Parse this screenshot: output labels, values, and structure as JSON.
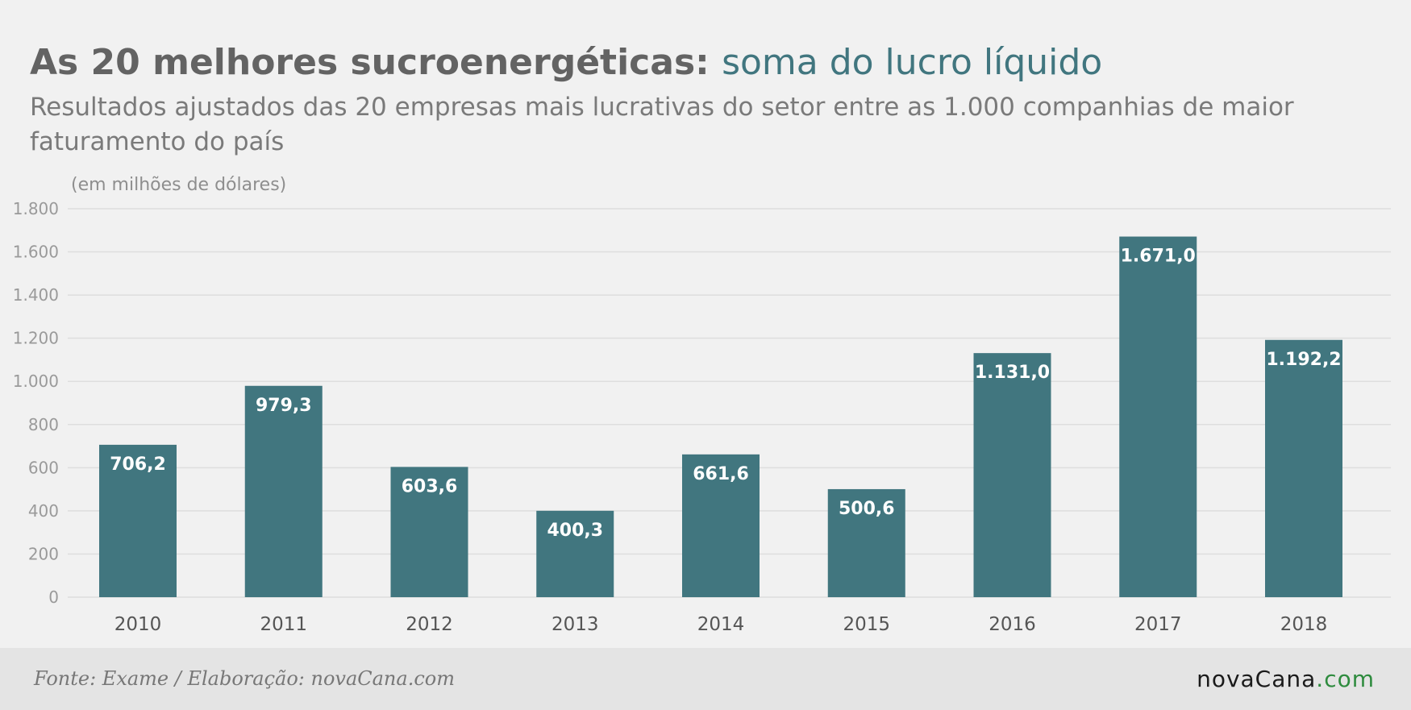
{
  "header": {
    "title_main": "As 20 melhores sucroenergéticas:",
    "title_accent": "soma do lucro líquido",
    "subtitle": "Resultados ajustados das 20 empresas mais lucrativas do setor entre as 1.000 companhias de maior faturamento do país"
  },
  "footer": {
    "source": "Fonte: Exame / Elaboração: novaCana.com",
    "logo_main": "novaCana",
    "logo_suffix": ".com"
  },
  "colors": {
    "bar": "#41767f",
    "title": "#636363",
    "accent": "#41767f",
    "grid": "#dedede",
    "tick": "#9a9a9a",
    "category": "#555555",
    "data_label": "#ffffff",
    "footer_bg": "#e4e4e4",
    "logo_com": "#2e8b3e"
  },
  "chart_data": {
    "type": "bar",
    "title": "As 20 melhores sucroenergéticas: soma do lucro líquido",
    "subtitle": "Resultados ajustados das 20 empresas mais lucrativas do setor entre as 1.000 companhias de maior faturamento do país",
    "unit_label": "(em milhões de dólares)",
    "categories": [
      "2010",
      "2011",
      "2012",
      "2013",
      "2014",
      "2015",
      "2016",
      "2017",
      "2018"
    ],
    "values": [
      706.2,
      979.3,
      603.6,
      400.3,
      661.6,
      500.6,
      1131.0,
      1671.0,
      1192.2
    ],
    "value_labels": [
      "706,2",
      "979,3",
      "603,6",
      "400,3",
      "661,6",
      "500,6",
      "1.131,0",
      "1.671,0",
      "1.192,2"
    ],
    "ylim": [
      0,
      1800
    ],
    "yticks": [
      0,
      200,
      400,
      600,
      800,
      1000,
      1200,
      1400,
      1600,
      1800
    ],
    "ytick_labels": [
      "0",
      "200",
      "400",
      "600",
      "800",
      "1.000",
      "1.200",
      "1.400",
      "1.600",
      "1.800"
    ],
    "grid": true,
    "legend": "none"
  }
}
